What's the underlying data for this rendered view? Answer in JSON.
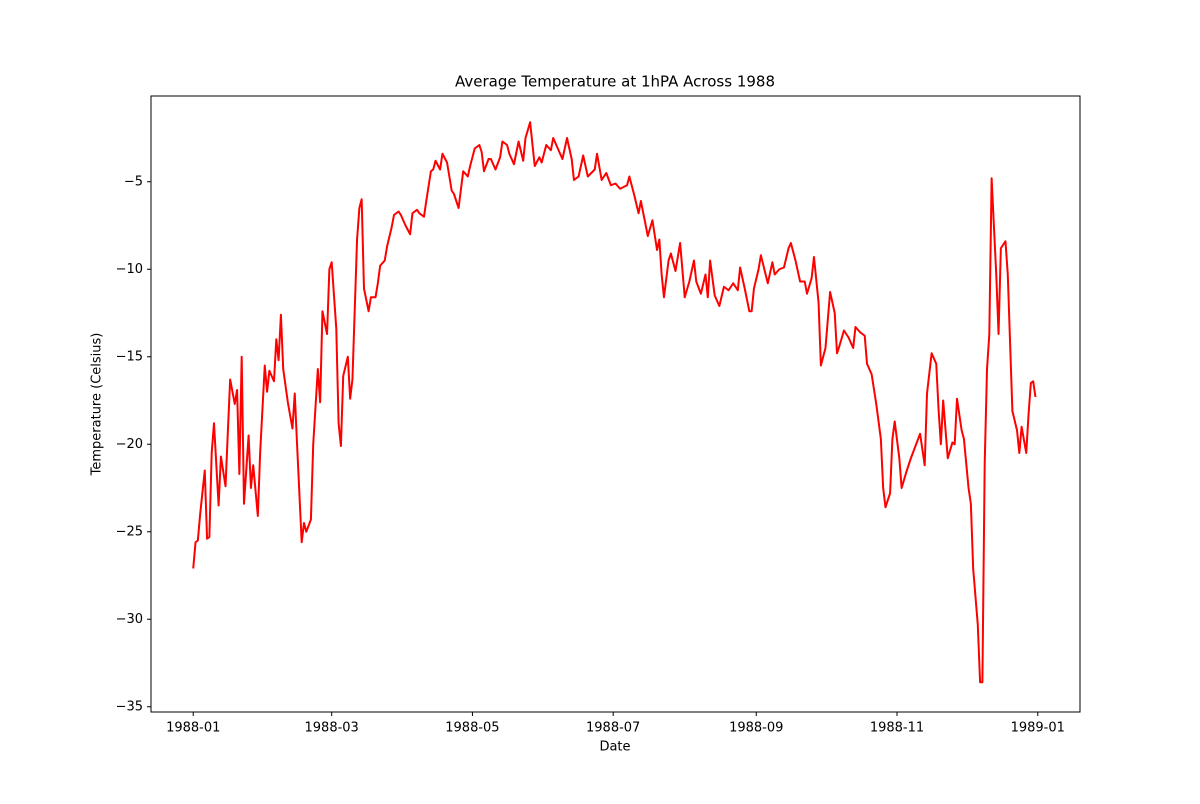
{
  "chart_data": {
    "type": "line",
    "title": "Average Temperature at 1hPA Across 1988",
    "x_label": "Date",
    "y_label": "Temperature (Celsius)",
    "x": [
      0,
      1,
      2,
      3,
      5,
      6,
      7,
      8,
      9,
      11,
      12,
      14,
      15,
      16,
      18,
      19,
      20,
      21,
      22,
      24,
      25,
      26,
      28,
      29,
      31,
      32,
      33,
      35,
      36,
      37,
      38,
      39,
      41,
      43,
      44,
      45,
      47,
      48,
      49,
      51,
      52,
      54,
      55,
      56,
      58,
      59,
      60,
      62,
      63,
      64,
      65,
      67,
      68,
      69,
      71,
      72,
      73,
      74,
      76,
      77,
      79,
      80,
      81,
      83,
      84,
      86,
      87,
      89,
      90,
      92,
      94,
      95,
      97,
      98,
      100,
      101,
      103,
      104,
      105,
      107,
      108,
      110,
      112,
      113,
      115,
      117,
      119,
      120,
      122,
      124,
      125,
      126,
      128,
      129,
      131,
      133,
      134,
      136,
      137,
      139,
      141,
      143,
      144,
      146,
      148,
      150,
      151,
      153,
      155,
      156,
      158,
      160,
      162,
      164,
      165,
      167,
      169,
      171,
      174,
      175,
      177,
      179,
      181,
      183,
      185,
      188,
      189,
      191,
      193,
      194,
      197,
      199,
      201,
      202,
      203,
      204,
      206,
      207,
      209,
      211,
      213,
      215,
      217,
      218,
      220,
      222,
      223,
      224,
      226,
      228,
      230,
      232,
      234,
      236,
      237,
      239,
      241,
      242,
      243,
      245,
      246,
      249,
      251,
      252,
      254,
      256,
      258,
      259,
      261,
      263,
      265,
      266,
      268,
      269,
      271,
      272,
      274,
      276,
      278,
      279,
      280,
      282,
      284,
      286,
      287,
      289,
      291,
      292,
      294,
      296,
      298,
      299,
      300,
      302,
      303,
      304,
      306,
      307,
      309,
      311,
      313,
      315,
      317,
      318,
      320,
      322,
      323,
      324,
      325,
      327,
      329,
      330,
      331,
      333,
      334,
      336,
      337,
      338,
      340,
      341,
      342,
      343,
      344,
      345,
      346,
      348,
      349,
      350,
      352,
      353,
      355,
      357,
      358,
      359,
      361,
      362,
      363,
      364,
      365
    ],
    "series": [
      {
        "name": "Temperature",
        "color": "#ff0000",
        "values": [
          -27.1,
          -25.6,
          -25.5,
          -24,
          -21.5,
          -25.4,
          -25.3,
          -20.5,
          -18.8,
          -23.5,
          -20.7,
          -22.4,
          -19.3,
          -16.3,
          -17.7,
          -16.9,
          -21.7,
          -15,
          -23.4,
          -19.5,
          -22.5,
          -21.2,
          -24.1,
          -20.5,
          -15.5,
          -17,
          -15.8,
          -16.4,
          -14,
          -15.2,
          -12.6,
          -15.7,
          -17.6,
          -19.1,
          -17.1,
          -20,
          -25.6,
          -24.5,
          -25,
          -24.3,
          -20,
          -15.7,
          -17.6,
          -12.4,
          -13.7,
          -10,
          -9.6,
          -13.4,
          -18.8,
          -20.1,
          -16.1,
          -15,
          -17.4,
          -16.3,
          -8.3,
          -6.5,
          -6,
          -11.1,
          -12.4,
          -11.6,
          -11.6,
          -10.8,
          -9.8,
          -9.5,
          -8.7,
          -7.6,
          -6.9,
          -6.7,
          -6.9,
          -7.5,
          -8,
          -6.8,
          -6.6,
          -6.8,
          -7,
          -6.1,
          -4.4,
          -4.3,
          -3.8,
          -4.3,
          -3.4,
          -3.9,
          -5.5,
          -5.7,
          -6.5,
          -4.4,
          -4.7,
          -4.1,
          -3.1,
          -2.9,
          -3.3,
          -4.4,
          -3.7,
          -3.7,
          -4.3,
          -3.6,
          -2.7,
          -2.9,
          -3.4,
          -4,
          -2.7,
          -3.8,
          -2.5,
          -1.6,
          -4.1,
          -3.6,
          -3.9,
          -2.9,
          -3.2,
          -2.5,
          -3.1,
          -3.7,
          -2.5,
          -3.7,
          -4.9,
          -4.7,
          -3.5,
          -4.7,
          -4.3,
          -3.4,
          -4.9,
          -4.5,
          -5.2,
          -5.1,
          -5.4,
          -5.2,
          -4.7,
          -5.7,
          -6.8,
          -6.1,
          -8.1,
          -7.2,
          -8.9,
          -8.3,
          -10.3,
          -11.6,
          -9.5,
          -9.1,
          -10.1,
          -8.5,
          -11.6,
          -10.7,
          -9.5,
          -10.7,
          -11.4,
          -10.3,
          -11.6,
          -9.5,
          -11.5,
          -12.1,
          -11,
          -11.2,
          -10.8,
          -11.2,
          -9.9,
          -11.1,
          -12.4,
          -12.4,
          -11.1,
          -10,
          -9.2,
          -10.8,
          -9.6,
          -10.3,
          -10,
          -9.9,
          -8.8,
          -8.5,
          -9.5,
          -10.7,
          -10.7,
          -11.4,
          -10.5,
          -9.3,
          -11.9,
          -15.5,
          -14.5,
          -11.3,
          -12.5,
          -14.8,
          -14.4,
          -13.5,
          -13.9,
          -14.5,
          -13.3,
          -13.6,
          -13.8,
          -15.4,
          -16,
          -17.7,
          -19.7,
          -22.5,
          -23.6,
          -22.8,
          -19.7,
          -18.7,
          -20.8,
          -22.5,
          -21.6,
          -20.8,
          -20.1,
          -19.4,
          -21.2,
          -17.1,
          -14.8,
          -15.4,
          -18,
          -20,
          -17.5,
          -20.8,
          -19.9,
          -20,
          -17.4,
          -19.2,
          -19.7,
          -22.5,
          -23.4,
          -27.1,
          -30.3,
          -33.6,
          -33.6,
          -21.1,
          -15.7,
          -13.7,
          -4.8,
          -10.3,
          -13.7,
          -8.8,
          -8.4,
          -10.3,
          -18.1,
          -19.2,
          -20.5,
          -19,
          -20.5,
          -18.3,
          -16.5,
          -16.4,
          -17.3
        ]
      }
    ],
    "xlim": [
      -18.3,
      384.3
    ],
    "xticks": [
      {
        "value": 0,
        "label": "1988-01"
      },
      {
        "value": 60,
        "label": "1988-03"
      },
      {
        "value": 121,
        "label": "1988-05"
      },
      {
        "value": 182,
        "label": "1988-07"
      },
      {
        "value": 244,
        "label": "1988-09"
      },
      {
        "value": 305,
        "label": "1988-11"
      },
      {
        "value": 366,
        "label": "1989-01"
      }
    ],
    "ylim": [
      -35.3,
      -0.1
    ],
    "yticks": [
      {
        "value": -35,
        "label": "−35"
      },
      {
        "value": -30,
        "label": "−30"
      },
      {
        "value": -25,
        "label": "−25"
      },
      {
        "value": -20,
        "label": "−20"
      },
      {
        "value": -15,
        "label": "−15"
      },
      {
        "value": -10,
        "label": "−10"
      },
      {
        "value": -5,
        "label": "−5"
      }
    ]
  }
}
